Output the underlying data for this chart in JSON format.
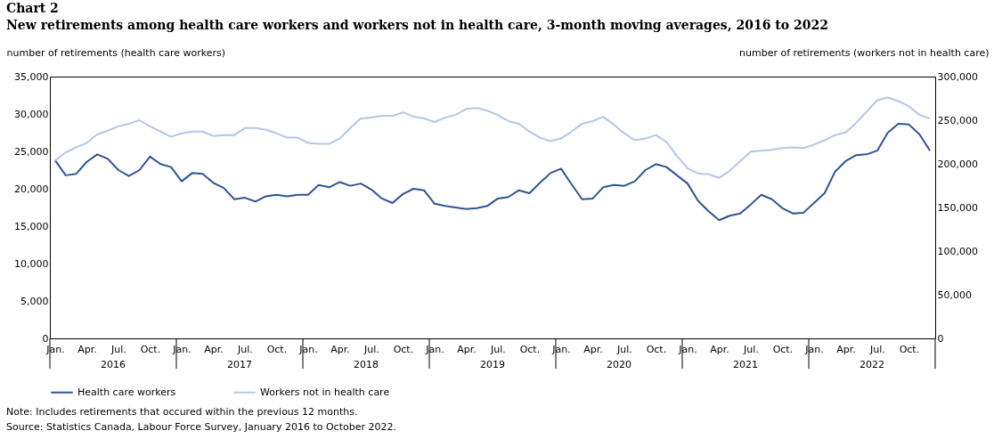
{
  "chart_data": {
    "type": "line",
    "title": "Chart 2",
    "subtitle": "New retirements among health care workers and workers not in health care, 3-month moving averages, 2016 to 2022",
    "ylabel": "number of retirements (health care workers)",
    "y2label": "number of retirements (workers not in health care)",
    "categories": [
      "Jan.",
      null,
      null,
      "Apr.",
      null,
      null,
      "Jul.",
      null,
      null,
      "Oct.",
      null,
      null,
      "Jan.",
      null,
      null,
      "Apr.",
      null,
      null,
      "Jul.",
      null,
      null,
      "Oct.",
      null,
      null,
      "Jan.",
      null,
      null,
      "Apr.",
      null,
      null,
      "Jul.",
      null,
      null,
      "Oct.",
      null,
      null,
      "Jan.",
      null,
      null,
      "Apr.",
      null,
      null,
      "Jul.",
      null,
      null,
      "Oct.",
      null,
      null,
      "Jan.",
      null,
      null,
      "Apr.",
      null,
      null,
      "Jul.",
      null,
      null,
      "Oct.",
      null,
      null,
      "Jan.",
      null,
      null,
      "Apr.",
      null,
      null,
      "Jul.",
      null,
      null,
      "Oct.",
      null,
      null,
      "Jan.",
      null,
      null,
      "Apr.",
      null,
      null,
      "Jul.",
      null,
      null,
      "Oct.",
      null,
      null
    ],
    "series": [
      {
        "name": "Health care workers",
        "color": "#2e5496",
        "values": [
          23800,
          21800,
          22000,
          23600,
          24600,
          24000,
          22500,
          21700,
          22500,
          24300,
          23300,
          22900,
          21000,
          22100,
          22000,
          20800,
          20100,
          18600,
          18800,
          18300,
          19000,
          19200,
          19000,
          19200,
          19200,
          20500,
          20200,
          20900,
          20400,
          20700,
          19900,
          18700,
          18100,
          19300,
          20000,
          19800,
          18000,
          17700,
          17500,
          17300,
          17400,
          17700,
          18700,
          18900,
          19800,
          19400,
          20800,
          22100,
          22700,
          20600,
          18600,
          18700,
          20200,
          20500,
          20400,
          21000,
          22500,
          23300,
          22900,
          21800,
          20700,
          18400,
          17000,
          15800,
          16400,
          16700,
          17900,
          19200,
          18600,
          17400,
          16700,
          16800,
          18100,
          19400,
          22300,
          23700,
          24500,
          24600,
          25100,
          27500,
          28700,
          28600,
          27300,
          25100
        ]
      },
      {
        "name": "Workers not in health care",
        "color": "#b4c7e7",
        "axis": "y2",
        "values": [
          204000,
          213000,
          219000,
          224000,
          234000,
          238000,
          243000,
          246000,
          250000,
          243000,
          237000,
          231000,
          235000,
          237000,
          237000,
          232000,
          233000,
          233000,
          241000,
          241000,
          239000,
          235000,
          230000,
          230000,
          224000,
          223000,
          223000,
          229000,
          241000,
          252000,
          253000,
          255000,
          255000,
          259000,
          254000,
          252000,
          248000,
          253000,
          256000,
          263000,
          264000,
          261000,
          256000,
          249000,
          246000,
          237000,
          230000,
          226000,
          229000,
          237000,
          246000,
          249000,
          254000,
          245000,
          235000,
          227000,
          229000,
          233000,
          225000,
          209000,
          195000,
          189000,
          188000,
          184000,
          192000,
          203000,
          214000,
          215000,
          216000,
          218000,
          219000,
          218000,
          222000,
          227000,
          233000,
          236000,
          247000,
          260000,
          273000,
          276000,
          272000,
          266000,
          256000,
          252000
        ]
      }
    ],
    "ylim": [
      0,
      35000
    ],
    "yticks": [
      0,
      {
        "value": 5000,
        "label": "5,000"
      },
      {
        "value": 10000,
        "label": "10,000"
      },
      {
        "value": 15000,
        "label": "15,000"
      },
      {
        "value": 20000,
        "label": "20,000"
      },
      {
        "value": 25000,
        "label": "25,000"
      },
      {
        "value": 30000,
        "label": "30,000"
      },
      {
        "value": 35000,
        "label": "35,000"
      }
    ],
    "y2lim": [
      0,
      300000
    ],
    "y2ticks": [
      0,
      {
        "value": 50000,
        "label": "50,000"
      },
      {
        "value": 100000,
        "label": "100,000"
      },
      {
        "value": 150000,
        "label": "150,000"
      },
      {
        "value": 200000,
        "label": "200,000"
      },
      {
        "value": 250000,
        "label": "250,000"
      },
      {
        "value": 300000,
        "label": "300,000"
      }
    ],
    "grid": false,
    "legend": "bottom",
    "annotations": [
      "2016",
      "2017",
      "2018",
      "2019",
      "2020",
      "2021",
      "2022",
      "Note: Includes retirements that occured within the previous 12 months.",
      "Source: Statistics Canada, Labour Force Survey, January 2016 to October 2022."
    ]
  }
}
